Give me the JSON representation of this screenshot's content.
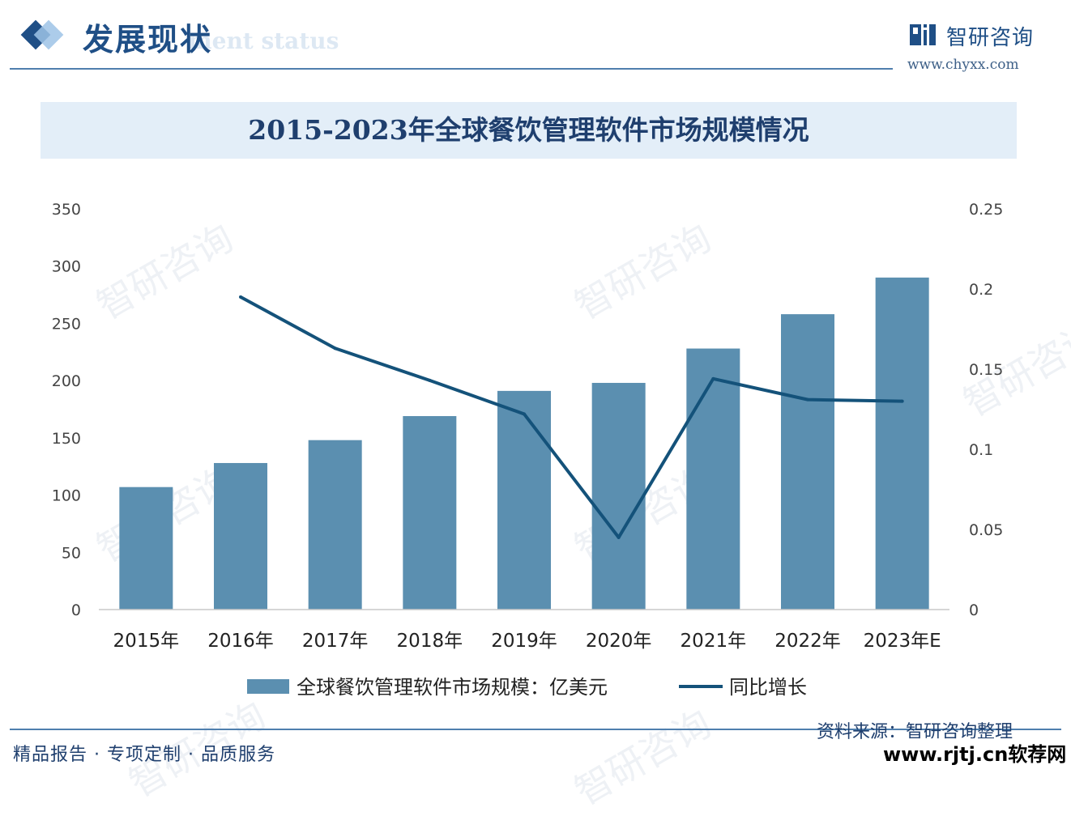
{
  "header": {
    "section_title": "发展现状",
    "section_subtitle": "ment status",
    "brand_name": "智研咨询",
    "brand_url": "www.chyxx.com"
  },
  "chart_data": {
    "type": "bar",
    "title": "2015-2023年全球餐饮管理软件市场规模情况",
    "categories": [
      "2015年",
      "2016年",
      "2017年",
      "2018年",
      "2019年",
      "2020年",
      "2021年",
      "2022年",
      "2023年E"
    ],
    "series": [
      {
        "name": "全球餐饮管理软件市场规模：亿美元",
        "type": "bar",
        "axis": "left",
        "color": "#5b8fb0",
        "values": [
          107,
          128,
          148,
          169,
          191,
          198,
          228,
          258,
          290
        ]
      },
      {
        "name": "同比增长",
        "type": "line",
        "axis": "right",
        "color": "#14527a",
        "values": [
          null,
          0.195,
          0.163,
          0.143,
          0.122,
          0.045,
          0.144,
          0.131,
          0.13
        ]
      }
    ],
    "y_left": {
      "min": 0,
      "max": 350,
      "ticks": [
        "0",
        "50",
        "100",
        "150",
        "200",
        "250",
        "300",
        "350"
      ]
    },
    "y_right": {
      "min": 0,
      "max": 0.25,
      "ticks": [
        "0",
        "0.05",
        "0.1",
        "0.15",
        "0.2",
        "0.25"
      ]
    },
    "grid": false,
    "legend": "bottom"
  },
  "footer": {
    "slogan": "精品报告 · 专项定制 · 品质服务",
    "source": "资料来源：智研咨询整理",
    "site_watermark": "www.rjtj.cn软荐网"
  },
  "watermark_text": "智研咨询",
  "colors": {
    "brand": "#1f4f86",
    "bar": "#5b8fb0",
    "line": "#14527a",
    "band": "#e3eef8"
  }
}
